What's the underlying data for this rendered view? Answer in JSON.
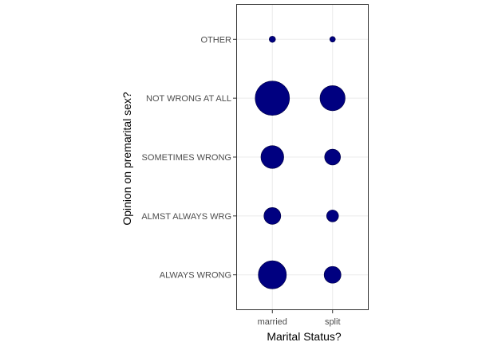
{
  "chart_data": {
    "type": "scatter",
    "xlabel": "Marital Status?",
    "ylabel": "Opinion on premarital sex?",
    "x_categories": [
      "married",
      "split"
    ],
    "y_categories": [
      "ALWAYS WRONG",
      "ALMST ALWAYS WRG",
      "SOMETIMES WRONG",
      "NOT WRONG AT ALL",
      "OTHER"
    ],
    "point_color": "#000080",
    "grid": true,
    "legend": "none",
    "points": [
      {
        "x": "married",
        "y": "OTHER",
        "size": 0.5
      },
      {
        "x": "split",
        "y": "OTHER",
        "size": 0.3
      },
      {
        "x": "married",
        "y": "NOT WRONG AT ALL",
        "size": 14.9
      },
      {
        "x": "split",
        "y": "NOT WRONG AT ALL",
        "size": 8.0
      },
      {
        "x": "married",
        "y": "SOMETIMES WRONG",
        "size": 6.6
      },
      {
        "x": "split",
        "y": "SOMETIMES WRONG",
        "size": 3.2
      },
      {
        "x": "married",
        "y": "ALMST ALWAYS WRG",
        "size": 3.6
      },
      {
        "x": "split",
        "y": "ALMST ALWAYS WRG",
        "size": 1.8
      },
      {
        "x": "married",
        "y": "ALWAYS WRONG",
        "size": 10.0
      },
      {
        "x": "split",
        "y": "ALWAYS WRONG",
        "size": 3.6
      }
    ]
  }
}
